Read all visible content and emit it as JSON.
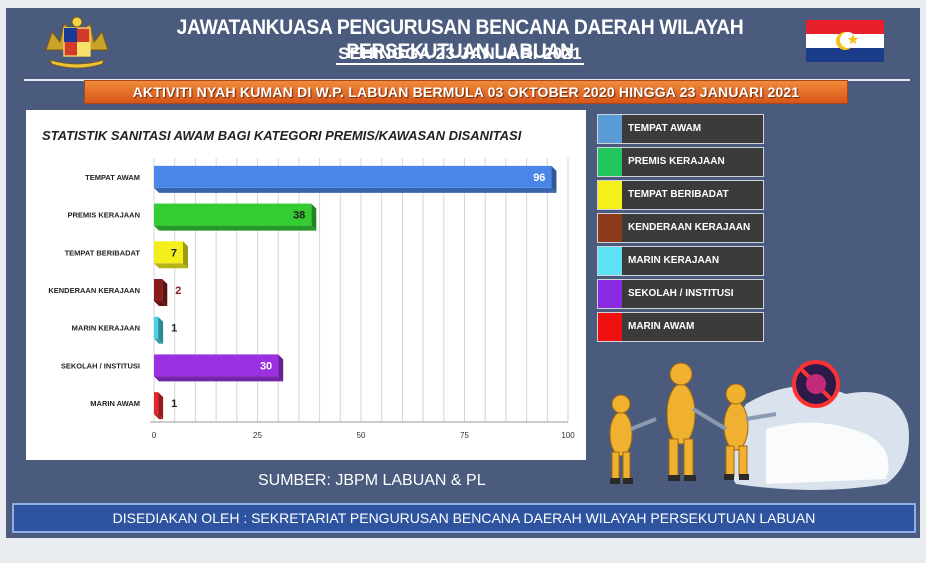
{
  "header": {
    "title": "JAWATANKUASA PENGURUSAN BENCANA DAERAH WILAYAH PERSEKUTUAN  LABUAN",
    "subtitle": "SEHINGGA 23 JANUARI 2021"
  },
  "banner": "AKTIVITI NYAH KUMAN DI W.P. LABUAN BERMULA 03 OKTOBER 2020 HINGGA 23 JANUARI 2021",
  "chart_data": {
    "type": "bar",
    "orientation": "horizontal",
    "title": "STATISTIK SANITASI AWAM BAGI KATEGORI PREMIS/KAWASAN DISANITASI",
    "categories": [
      "TEMPAT AWAM",
      "PREMIS KERAJAAN",
      "TEMPAT BERIBADAT",
      "KENDERAAN KERAJAAN",
      "MARIN KERAJAAN",
      "SEKOLAH / INSTITUSI",
      "MARIN AWAM"
    ],
    "values": [
      96,
      38,
      7,
      2,
      1,
      30,
      1
    ],
    "colors": [
      "#4a86e8",
      "#33cc33",
      "#f2ef1a",
      "#8b1a1a",
      "#48d1e8",
      "#9b30e0",
      "#e8262a"
    ],
    "xlim": [
      0,
      100
    ],
    "xticks": [
      "0",
      "25",
      "50",
      "75",
      "100"
    ],
    "grid": true,
    "xlabel": "",
    "ylabel": ""
  },
  "legend": [
    {
      "label": "TEMPAT AWAM",
      "color": "#5b9bd5"
    },
    {
      "label": "PREMIS KERAJAAN",
      "color": "#22c55e"
    },
    {
      "label": "TEMPAT BERIBADAT",
      "color": "#f5f01a"
    },
    {
      "label": "KENDERAAN KERAJAAN",
      "color": "#8b3a1a"
    },
    {
      "label": "MARIN KERAJAAN",
      "color": "#5ee0f5"
    },
    {
      "label": "SEKOLAH / INSTITUSI",
      "color": "#8a2be2"
    },
    {
      "label": "MARIN AWAM",
      "color": "#f01010"
    }
  ],
  "source": "SUMBER: JBPM LABUAN & PL",
  "footer": "DISEDIAKAN OLEH : SEKRETARIAT PENGURUSAN BENCANA DAERAH WILAYAH PERSEKUTUAN LABUAN"
}
